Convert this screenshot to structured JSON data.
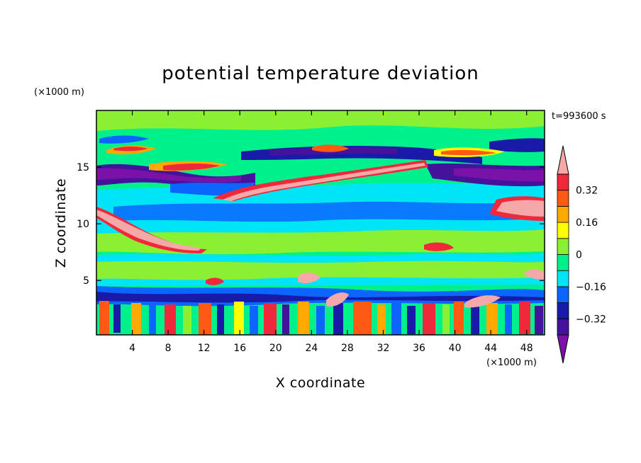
{
  "chart_data": {
    "type": "heatmap",
    "title": "potential temperature deviation",
    "xlabel": "X coordinate",
    "ylabel": "Z coordinate",
    "x_unit": "(×1000 m)",
    "y_unit": "(×1000 m)",
    "time_label": "t=993600 s",
    "xlim": [
      0,
      50
    ],
    "ylim": [
      0.2,
      20
    ],
    "x_ticks": [
      4,
      8,
      12,
      16,
      20,
      24,
      28,
      32,
      36,
      40,
      44,
      48
    ],
    "y_ticks": [
      5,
      10,
      15
    ],
    "colorbar": {
      "levels": [
        -0.4,
        -0.32,
        -0.24,
        -0.16,
        -0.08,
        0,
        0.08,
        0.16,
        0.24,
        0.32,
        0.4
      ],
      "tick_labels": [
        "0.32",
        "0.16",
        "0",
        "−0.16",
        "−0.32"
      ],
      "tick_values": [
        0.32,
        0.16,
        0,
        -0.16,
        -0.32
      ],
      "colors": [
        "#7a12a8",
        "#45129c",
        "#1a1aa8",
        "#0a66ff",
        "#00e5f5",
        "#00f08c",
        "#8cf032",
        "#ffff00",
        "#ffa800",
        "#ff5a14",
        "#f0283c",
        "#f5a8a8"
      ]
    }
  }
}
